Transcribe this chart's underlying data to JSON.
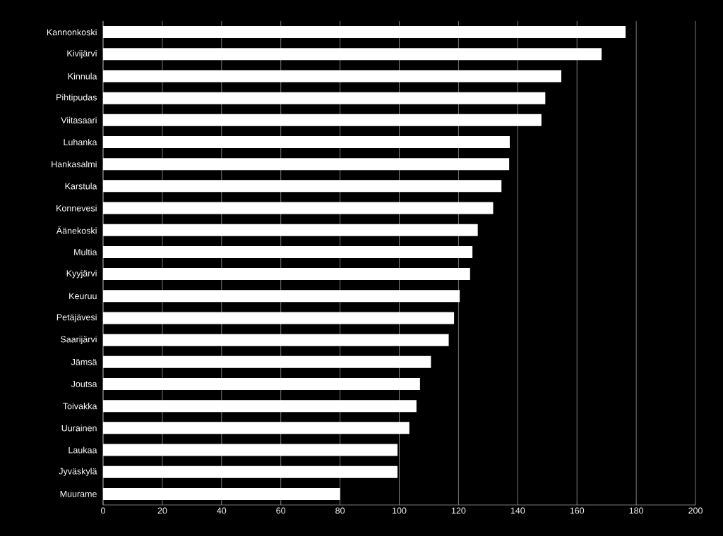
{
  "chart_data": {
    "type": "bar",
    "orientation": "horizontal",
    "categories": [
      "Kannonkoski",
      "Kivijärvi",
      "Kinnula",
      "Pihtipudas",
      "Viitasaari",
      "Luhanka",
      "Hankasalmi",
      "Karstula",
      "Konnevesi",
      "Äänekoski",
      "Multia",
      "Kyyjärvi",
      "Keuruu",
      "Petäjävesi",
      "Saarijärvi",
      "Jämsä",
      "Joutsa",
      "Toivakka",
      "Uurainen",
      "Laukaa",
      "Jyväskylä",
      "Muurame"
    ],
    "values": [
      176.4,
      168.3,
      154.7,
      149.3,
      148.0,
      137.3,
      137.1,
      134.5,
      131.7,
      126.5,
      124.7,
      123.9,
      120.4,
      118.5,
      116.7,
      110.7,
      107.0,
      105.8,
      103.4,
      99.4,
      99.4,
      80.0
    ],
    "color": "#ffffff",
    "xlim": [
      0,
      200
    ],
    "xticks": [
      0,
      20,
      40,
      60,
      80,
      100,
      120,
      140,
      160,
      180,
      200
    ],
    "grid": "x"
  }
}
